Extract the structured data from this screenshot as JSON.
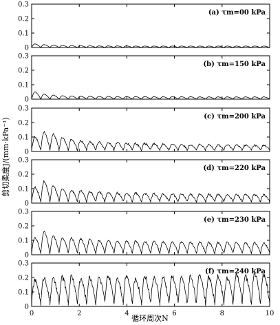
{
  "chart_data": {
    "type": "line",
    "xlabel": "循环周次N",
    "ylabel": "剪切柔度J/(mm·kPa⁻¹)",
    "xlim": [
      0,
      10
    ],
    "ylim": [
      0,
      0.3
    ],
    "x_ticks": [
      "0",
      "2",
      "4",
      "6",
      "8",
      "10"
    ],
    "y_ticks": [
      "0",
      "0.1",
      "0.2",
      "0.3"
    ],
    "grid": false,
    "panels": [
      {
        "label": "(a) τm=00 kPa",
        "cycles": 26,
        "peaks": [
          0.025,
          0.02,
          0.016,
          0.014,
          0.013,
          0.012,
          0.012,
          0.011,
          0.011,
          0.011,
          0.011,
          0.01,
          0.01,
          0.01,
          0.01,
          0.01,
          0.01,
          0.01,
          0.01,
          0.01,
          0.01,
          0.01,
          0.01,
          0.01,
          0.01,
          0.01
        ],
        "valley": 0.0
      },
      {
        "label": "(b) τm=150 kPa",
        "cycles": 26,
        "peaks": [
          0.05,
          0.035,
          0.028,
          0.024,
          0.022,
          0.02,
          0.02,
          0.019,
          0.019,
          0.018,
          0.018,
          0.018,
          0.018,
          0.017,
          0.017,
          0.017,
          0.017,
          0.017,
          0.016,
          0.016,
          0.016,
          0.016,
          0.016,
          0.016,
          0.016,
          0.016
        ],
        "valley": 0.0
      },
      {
        "label": "(c) τm=200 kPa",
        "cycles": 26,
        "peaks": [
          0.1,
          0.135,
          0.12,
          0.095,
          0.085,
          0.075,
          0.07,
          0.065,
          0.062,
          0.06,
          0.058,
          0.056,
          0.055,
          0.053,
          0.052,
          0.05,
          0.05,
          0.048,
          0.047,
          0.046,
          0.046,
          0.045,
          0.045,
          0.044,
          0.044,
          0.043
        ],
        "valley": 0.01
      },
      {
        "label": "(d) τm=220 kPa",
        "cycles": 26,
        "peaks": [
          0.11,
          0.15,
          0.12,
          0.1,
          0.09,
          0.085,
          0.08,
          0.078,
          0.075,
          0.072,
          0.07,
          0.07,
          0.068,
          0.066,
          0.065,
          0.064,
          0.063,
          0.062,
          0.062,
          0.061,
          0.06,
          0.06,
          0.06,
          0.059,
          0.059,
          0.058
        ],
        "valley": 0.01
      },
      {
        "label": "(e) τm=230 kPa",
        "cycles": 26,
        "peaks": [
          0.12,
          0.16,
          0.13,
          0.12,
          0.115,
          0.11,
          0.105,
          0.1,
          0.1,
          0.098,
          0.095,
          0.095,
          0.093,
          0.092,
          0.09,
          0.09,
          0.09,
          0.088,
          0.087,
          0.086,
          0.085,
          0.085,
          0.085,
          0.084,
          0.084,
          0.083
        ],
        "valley": 0.01
      },
      {
        "label": "(f) τm=240 kPa",
        "cycles": 26,
        "peaks": [
          0.18,
          0.2,
          0.19,
          0.2,
          0.21,
          0.19,
          0.2,
          0.2,
          0.21,
          0.2,
          0.22,
          0.19,
          0.21,
          0.2,
          0.2,
          0.21,
          0.2,
          0.21,
          0.22,
          0.2,
          0.21,
          0.2,
          0.22,
          0.21,
          0.23,
          0.22
        ],
        "valley": 0.02
      }
    ]
  }
}
